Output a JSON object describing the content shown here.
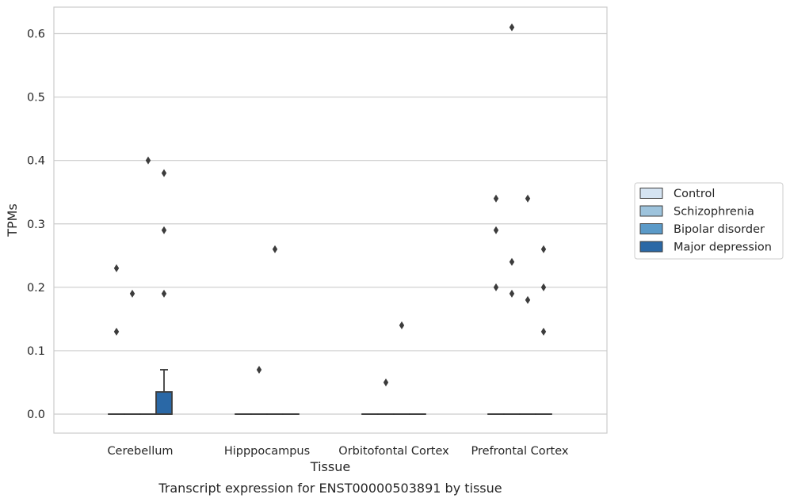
{
  "caption": "Transcript expression for ENST00000503891 by tissue",
  "chart_data": {
    "type": "box",
    "xlabel": "Tissue",
    "ylabel": "TPMs",
    "ylim": [
      -0.03,
      0.64
    ],
    "yticks": [
      0.0,
      0.1,
      0.2,
      0.3,
      0.4,
      0.5,
      0.6
    ],
    "ytick_labels": [
      "0.0",
      "0.1",
      "0.2",
      "0.3",
      "0.4",
      "0.5",
      "0.6"
    ],
    "grid": "horizontal",
    "legend_position": "right-outside",
    "categories": [
      "Cerebellum",
      "Hipppocampus",
      "Orbitofontal Cortex",
      "Prefrontal Cortex"
    ],
    "series": [
      {
        "name": "Control",
        "color": "#d5e4f2",
        "boxes": [
          {
            "q1": 0,
            "median": 0,
            "q3": 0,
            "whisker_low": 0,
            "whisker_high": 0,
            "outliers": [
              0.13,
              0.23
            ]
          },
          {
            "q1": 0,
            "median": 0,
            "q3": 0,
            "whisker_low": 0,
            "whisker_high": 0,
            "outliers": []
          },
          {
            "q1": 0,
            "median": 0,
            "q3": 0,
            "whisker_low": 0,
            "whisker_high": 0,
            "outliers": []
          },
          {
            "q1": 0,
            "median": 0,
            "q3": 0,
            "whisker_low": 0,
            "whisker_high": 0,
            "outliers": [
              0.2,
              0.29,
              0.34
            ]
          }
        ]
      },
      {
        "name": "Schizophrenia",
        "color": "#9dc3dc",
        "boxes": [
          {
            "q1": 0,
            "median": 0,
            "q3": 0,
            "whisker_low": 0,
            "whisker_high": 0,
            "outliers": [
              0.19
            ]
          },
          {
            "q1": 0,
            "median": 0,
            "q3": 0,
            "whisker_low": 0,
            "whisker_high": 0,
            "outliers": [
              0.07
            ]
          },
          {
            "q1": 0,
            "median": 0,
            "q3": 0,
            "whisker_low": 0,
            "whisker_high": 0,
            "outliers": [
              0.05
            ]
          },
          {
            "q1": 0,
            "median": 0,
            "q3": 0,
            "whisker_low": 0,
            "whisker_high": 0,
            "outliers": [
              0.19,
              0.24,
              0.61
            ]
          }
        ]
      },
      {
        "name": "Bipolar disorder",
        "color": "#5b9ac8",
        "boxes": [
          {
            "q1": 0,
            "median": 0,
            "q3": 0,
            "whisker_low": 0,
            "whisker_high": 0,
            "outliers": [
              0.4
            ]
          },
          {
            "q1": 0,
            "median": 0,
            "q3": 0,
            "whisker_low": 0,
            "whisker_high": 0,
            "outliers": [
              0.26
            ]
          },
          {
            "q1": 0,
            "median": 0,
            "q3": 0,
            "whisker_low": 0,
            "whisker_high": 0,
            "outliers": [
              0.14
            ]
          },
          {
            "q1": 0,
            "median": 0,
            "q3": 0,
            "whisker_low": 0,
            "whisker_high": 0,
            "outliers": [
              0.18,
              0.34
            ]
          }
        ]
      },
      {
        "name": "Major depression",
        "color": "#2a68a6",
        "boxes": [
          {
            "q1": 0,
            "median": 0,
            "q3": 0.035,
            "whisker_low": 0,
            "whisker_high": 0.07,
            "outliers": [
              0.19,
              0.29,
              0.38
            ]
          },
          {
            "q1": 0,
            "median": 0,
            "q3": 0,
            "whisker_low": 0,
            "whisker_high": 0,
            "outliers": []
          },
          {
            "q1": 0,
            "median": 0,
            "q3": 0,
            "whisker_low": 0,
            "whisker_high": 0,
            "outliers": []
          },
          {
            "q1": 0,
            "median": 0,
            "q3": 0,
            "whisker_low": 0,
            "whisker_high": 0,
            "outliers": [
              0.13,
              0.2,
              0.26
            ]
          }
        ]
      }
    ]
  }
}
